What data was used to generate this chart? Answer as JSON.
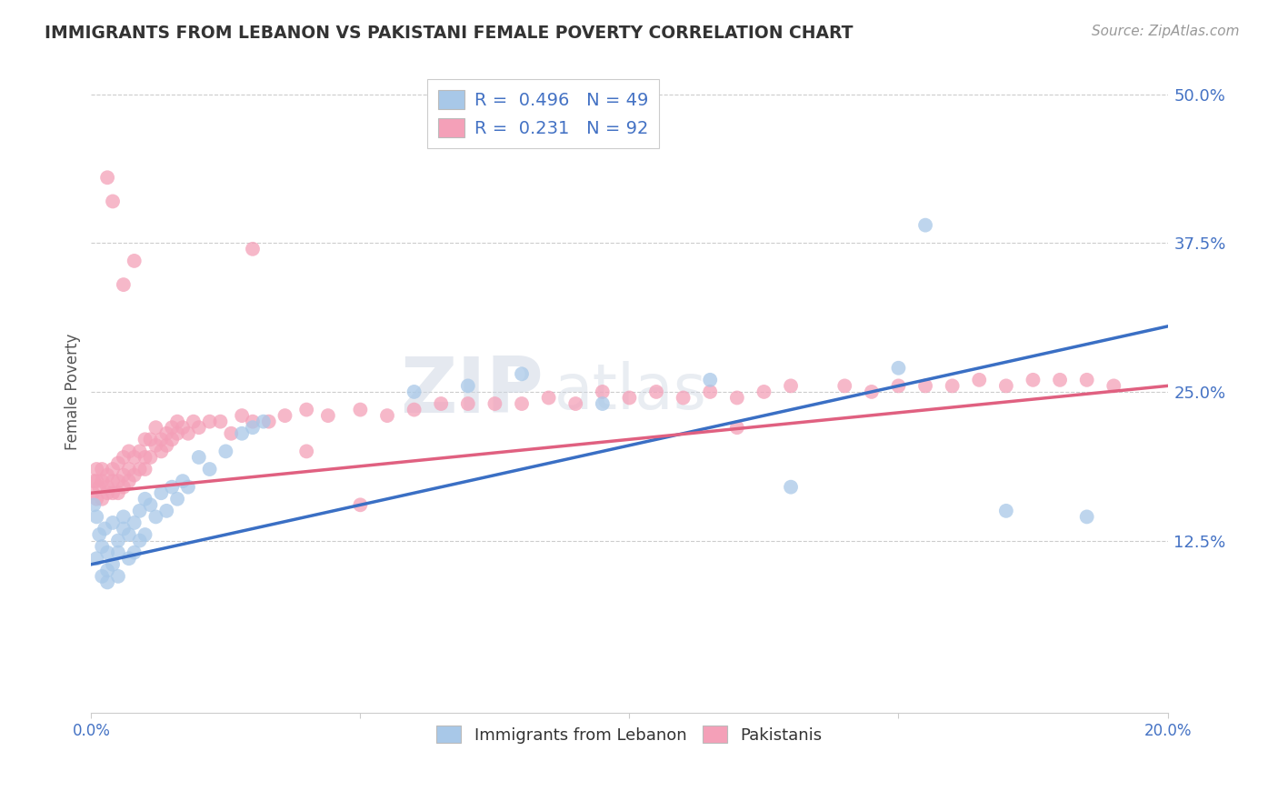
{
  "title": "IMMIGRANTS FROM LEBANON VS PAKISTANI FEMALE POVERTY CORRELATION CHART",
  "source": "Source: ZipAtlas.com",
  "ylabel": "Female Poverty",
  "xlim": [
    0.0,
    0.2
  ],
  "ylim": [
    -0.02,
    0.52
  ],
  "yticks": [
    0.125,
    0.25,
    0.375,
    0.5
  ],
  "yticklabels": [
    "12.5%",
    "25.0%",
    "37.5%",
    "50.0%"
  ],
  "blue_R": 0.496,
  "blue_N": 49,
  "pink_R": 0.231,
  "pink_N": 92,
  "blue_color": "#a8c8e8",
  "pink_color": "#f4a0b8",
  "blue_line_color": "#3a6fc4",
  "pink_line_color": "#e06080",
  "background_color": "#ffffff",
  "watermark_text": "ZIPatlas",
  "legend_label_blue": "Immigrants from Lebanon",
  "legend_label_pink": "Pakistanis",
  "blue_scatter_x": [
    0.0005,
    0.001,
    0.001,
    0.0015,
    0.002,
    0.002,
    0.0025,
    0.003,
    0.003,
    0.003,
    0.004,
    0.004,
    0.005,
    0.005,
    0.005,
    0.006,
    0.006,
    0.007,
    0.007,
    0.008,
    0.008,
    0.009,
    0.009,
    0.01,
    0.01,
    0.011,
    0.012,
    0.013,
    0.014,
    0.015,
    0.016,
    0.017,
    0.018,
    0.02,
    0.022,
    0.025,
    0.028,
    0.03,
    0.032,
    0.06,
    0.07,
    0.08,
    0.095,
    0.115,
    0.13,
    0.15,
    0.155,
    0.17,
    0.185
  ],
  "blue_scatter_y": [
    0.155,
    0.11,
    0.145,
    0.13,
    0.095,
    0.12,
    0.135,
    0.1,
    0.115,
    0.09,
    0.14,
    0.105,
    0.125,
    0.115,
    0.095,
    0.135,
    0.145,
    0.13,
    0.11,
    0.14,
    0.115,
    0.15,
    0.125,
    0.16,
    0.13,
    0.155,
    0.145,
    0.165,
    0.15,
    0.17,
    0.16,
    0.175,
    0.17,
    0.195,
    0.185,
    0.2,
    0.215,
    0.22,
    0.225,
    0.25,
    0.255,
    0.265,
    0.24,
    0.26,
    0.17,
    0.27,
    0.39,
    0.15,
    0.145
  ],
  "pink_scatter_x": [
    0.0003,
    0.0005,
    0.001,
    0.001,
    0.001,
    0.0015,
    0.002,
    0.002,
    0.002,
    0.003,
    0.003,
    0.003,
    0.004,
    0.004,
    0.004,
    0.005,
    0.005,
    0.005,
    0.006,
    0.006,
    0.006,
    0.007,
    0.007,
    0.007,
    0.008,
    0.008,
    0.009,
    0.009,
    0.01,
    0.01,
    0.01,
    0.011,
    0.011,
    0.012,
    0.012,
    0.013,
    0.013,
    0.014,
    0.014,
    0.015,
    0.015,
    0.016,
    0.016,
    0.017,
    0.018,
    0.019,
    0.02,
    0.022,
    0.024,
    0.026,
    0.028,
    0.03,
    0.033,
    0.036,
    0.04,
    0.044,
    0.05,
    0.055,
    0.06,
    0.065,
    0.07,
    0.075,
    0.08,
    0.085,
    0.09,
    0.095,
    0.1,
    0.105,
    0.11,
    0.115,
    0.12,
    0.125,
    0.13,
    0.14,
    0.145,
    0.15,
    0.155,
    0.16,
    0.165,
    0.17,
    0.175,
    0.18,
    0.185,
    0.19,
    0.003,
    0.004,
    0.006,
    0.008,
    0.03,
    0.04,
    0.05,
    0.12
  ],
  "pink_scatter_y": [
    0.165,
    0.175,
    0.16,
    0.175,
    0.185,
    0.17,
    0.16,
    0.175,
    0.185,
    0.17,
    0.18,
    0.165,
    0.185,
    0.175,
    0.165,
    0.19,
    0.175,
    0.165,
    0.195,
    0.18,
    0.17,
    0.185,
    0.2,
    0.175,
    0.195,
    0.18,
    0.185,
    0.2,
    0.195,
    0.185,
    0.21,
    0.195,
    0.21,
    0.205,
    0.22,
    0.21,
    0.2,
    0.215,
    0.205,
    0.22,
    0.21,
    0.225,
    0.215,
    0.22,
    0.215,
    0.225,
    0.22,
    0.225,
    0.225,
    0.215,
    0.23,
    0.225,
    0.225,
    0.23,
    0.235,
    0.23,
    0.235,
    0.23,
    0.235,
    0.24,
    0.24,
    0.24,
    0.24,
    0.245,
    0.24,
    0.25,
    0.245,
    0.25,
    0.245,
    0.25,
    0.245,
    0.25,
    0.255,
    0.255,
    0.25,
    0.255,
    0.255,
    0.255,
    0.26,
    0.255,
    0.26,
    0.26,
    0.26,
    0.255,
    0.43,
    0.41,
    0.34,
    0.36,
    0.37,
    0.2,
    0.155,
    0.22
  ],
  "blue_line_x0": 0.0,
  "blue_line_y0": 0.105,
  "blue_line_x1": 0.2,
  "blue_line_y1": 0.305,
  "pink_line_x0": 0.0,
  "pink_line_y0": 0.165,
  "pink_line_x1": 0.2,
  "pink_line_y1": 0.255
}
